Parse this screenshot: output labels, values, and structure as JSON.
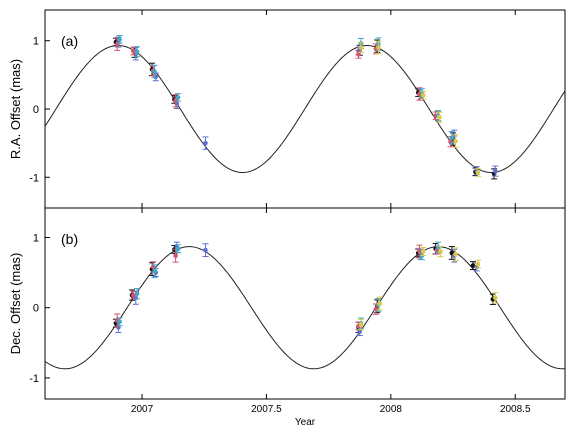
{
  "chart_data": [
    {
      "type": "scatter",
      "panel_label": "(a)",
      "ylabel": "R.A. Offset (mas)",
      "ylim": [
        -1.45,
        1.45
      ],
      "yticks": [
        1,
        0,
        -1
      ],
      "xlim": [
        2006.61,
        2008.7
      ],
      "xticks": [
        2007,
        2007.5,
        2008,
        2008.5
      ],
      "grid": false,
      "model_curve": {
        "amplitude": 0.93,
        "center": 0,
        "peak_year": 2006.904,
        "period_years": 1.0
      },
      "series": [
        {
          "name": "",
          "color": "#111111",
          "x": [
            2006.895,
            2006.97,
            2007.04,
            2007.13,
            2007.875,
            2007.945,
            2008.11,
            2008.19,
            2008.25,
            2008.34,
            2008.415
          ],
          "y": [
            0.98,
            0.83,
            0.58,
            0.14,
            0.86,
            0.92,
            0.24,
            -0.1,
            -0.44,
            -0.92,
            -0.95
          ]
        },
        {
          "name": "",
          "color": "#5b6fd6",
          "x": [
            2006.905,
            2006.975,
            2007.055,
            2007.14,
            2007.255,
            2007.87,
            2008.12,
            2008.255,
            2008.345,
            2008.42
          ],
          "y": [
            0.98,
            0.81,
            0.47,
            0.08,
            -0.5,
            0.85,
            0.22,
            -0.4,
            -0.9,
            -0.91
          ]
        },
        {
          "name": "",
          "color": "#d9506a",
          "x": [
            2006.9,
            2006.965,
            2007.045,
            2007.135,
            2007.87,
            2007.94,
            2008.115,
            2008.18,
            2008.24
          ],
          "y": [
            0.95,
            0.85,
            0.56,
            0.12,
            0.8,
            0.88,
            0.22,
            -0.1,
            -0.48
          ]
        },
        {
          "name": "",
          "color": "#3fa9c9",
          "x": [
            2006.91,
            2006.98,
            2007.05,
            2007.145,
            2007.88,
            2007.95,
            2008.125,
            2008.19,
            2008.245
          ],
          "y": [
            1.02,
            0.84,
            0.55,
            0.17,
            0.96,
            0.95,
            0.24,
            -0.1,
            -0.42
          ]
        },
        {
          "name": "",
          "color": "#d9c84a",
          "x": [
            2007.88,
            2007.95,
            2008.13,
            2008.195,
            2008.26,
            2008.35
          ],
          "y": [
            0.9,
            0.9,
            0.2,
            -0.12,
            -0.47,
            -0.93
          ]
        }
      ]
    },
    {
      "type": "scatter",
      "panel_label": "(b)",
      "ylabel": "Dec. Offset (mas)",
      "ylim": [
        -1.3,
        1.42
      ],
      "yticks": [
        1,
        0,
        -1
      ],
      "xlim": [
        2006.61,
        2008.7
      ],
      "xticks": [
        2007,
        2007.5,
        2008,
        2008.5
      ],
      "xticklabels": [
        "2007",
        "2007.5",
        "2008",
        "2008.5"
      ],
      "xlabel": "Year",
      "grid": false,
      "model_curve": {
        "amplitude": 0.87,
        "center": 0,
        "peak_year": 2007.19,
        "period_years": 1.0
      },
      "series": [
        {
          "name": "",
          "color": "#111111",
          "x": [
            2006.895,
            2006.96,
            2007.04,
            2007.13,
            2007.87,
            2007.945,
            2008.11,
            2008.18,
            2008.245,
            2008.33,
            2008.41
          ],
          "y": [
            -0.22,
            0.18,
            0.55,
            0.83,
            -0.28,
            0.02,
            0.78,
            0.84,
            0.78,
            0.6,
            0.12
          ]
        },
        {
          "name": "",
          "color": "#5b6fd6",
          "x": [
            2006.905,
            2006.975,
            2007.055,
            2007.14,
            2007.255,
            2007.875,
            2008.12,
            2008.255,
            2008.345
          ],
          "y": [
            -0.28,
            0.14,
            0.5,
            0.86,
            0.82,
            -0.34,
            0.76,
            0.74,
            0.58
          ]
        },
        {
          "name": "",
          "color": "#d9506a",
          "x": [
            2006.9,
            2006.965,
            2007.045,
            2007.135,
            2007.87,
            2007.94,
            2008.115,
            2008.185
          ],
          "y": [
            -0.18,
            0.18,
            0.58,
            0.74,
            -0.26,
            -0.02,
            0.8,
            0.82
          ]
        },
        {
          "name": "",
          "color": "#3fa9c9",
          "x": [
            2006.91,
            2006.98,
            2007.05,
            2007.145,
            2007.88,
            2007.95,
            2008.125,
            2008.19
          ],
          "y": [
            -0.2,
            0.2,
            0.52,
            0.84,
            -0.22,
            0.04,
            0.74,
            0.86
          ]
        },
        {
          "name": "",
          "color": "#d9c84a",
          "x": [
            2007.88,
            2007.955,
            2008.13,
            2008.2,
            2008.26,
            2008.35,
            2008.42
          ],
          "y": [
            -0.24,
            0.06,
            0.8,
            0.8,
            0.76,
            0.62,
            0.14
          ]
        }
      ]
    }
  ]
}
